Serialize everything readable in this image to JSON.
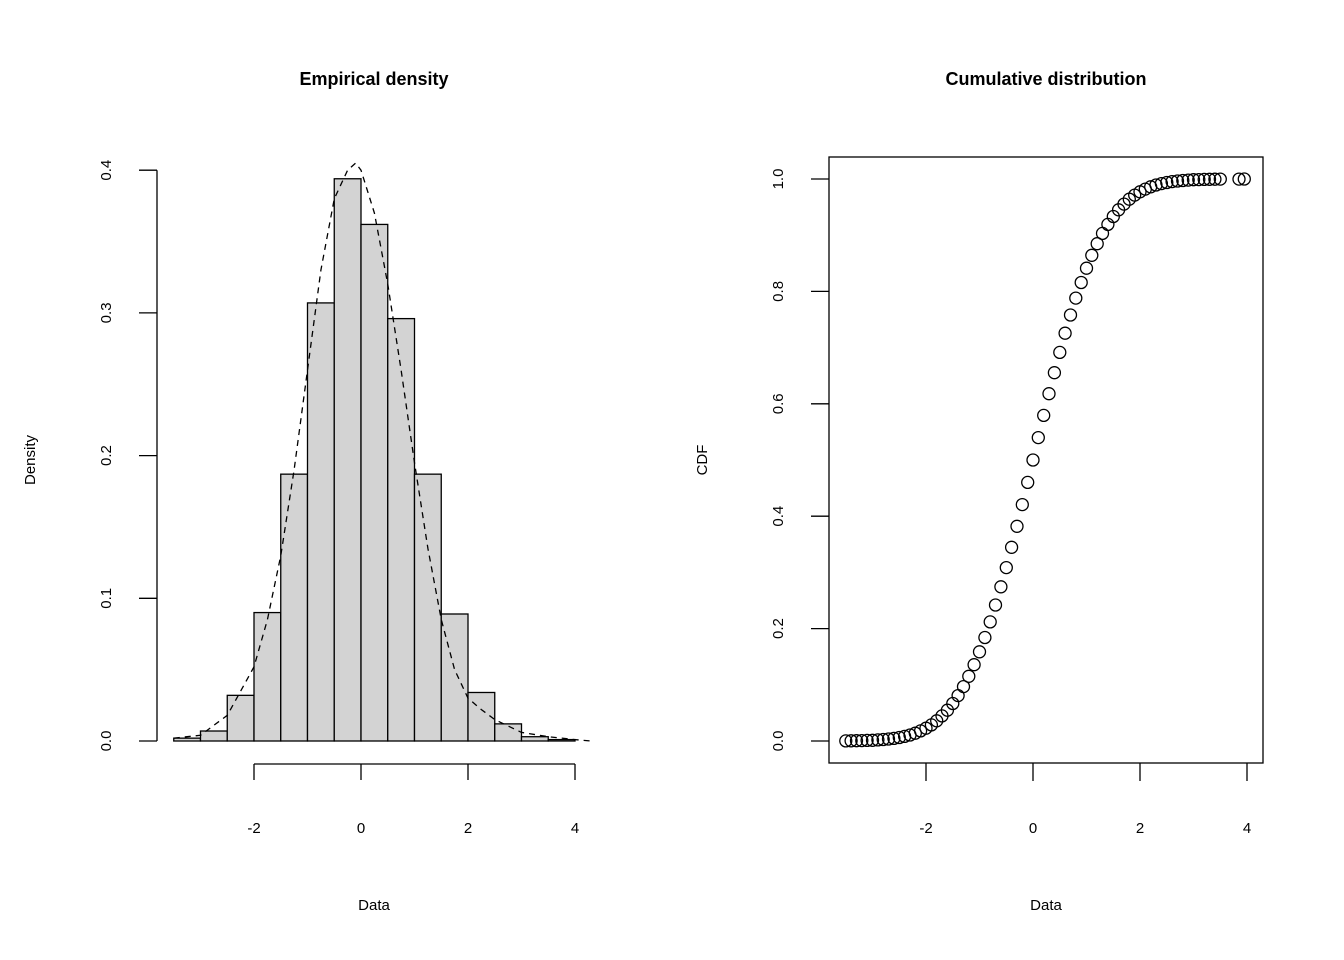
{
  "chart_data": [
    {
      "type": "bar",
      "title": "Empirical density",
      "xlabel": "Data",
      "ylabel": "Density",
      "xlim": [
        -3.5,
        4.3
      ],
      "ylim": [
        0,
        0.4
      ],
      "grid": false,
      "x_ticks": [
        -2,
        0,
        2,
        4
      ],
      "x_tick_labels": [
        "-2",
        "0",
        "2",
        "4"
      ],
      "y_ticks": [
        0,
        0.1,
        0.2,
        0.3,
        0.4
      ],
      "y_tick_labels": [
        "0.0",
        "0.1",
        "0.2",
        "0.3",
        "0.4"
      ],
      "bar_fill": "#d3d3d3",
      "bins": [
        {
          "x0": -3.5,
          "x1": -3.0,
          "density": 0.002
        },
        {
          "x0": -3.0,
          "x1": -2.5,
          "density": 0.007
        },
        {
          "x0": -2.5,
          "x1": -2.0,
          "density": 0.032
        },
        {
          "x0": -2.0,
          "x1": -1.5,
          "density": 0.09
        },
        {
          "x0": -1.5,
          "x1": -1.0,
          "density": 0.187
        },
        {
          "x0": -1.0,
          "x1": -0.5,
          "density": 0.307
        },
        {
          "x0": -0.5,
          "x1": 0.0,
          "density": 0.394
        },
        {
          "x0": 0.0,
          "x1": 0.5,
          "density": 0.362
        },
        {
          "x0": 0.5,
          "x1": 1.0,
          "density": 0.296
        },
        {
          "x0": 1.0,
          "x1": 1.5,
          "density": 0.187
        },
        {
          "x0": 1.5,
          "x1": 2.0,
          "density": 0.089
        },
        {
          "x0": 2.0,
          "x1": 2.5,
          "density": 0.034
        },
        {
          "x0": 2.5,
          "x1": 3.0,
          "density": 0.012
        },
        {
          "x0": 3.0,
          "x1": 3.5,
          "density": 0.003
        },
        {
          "x0": 3.5,
          "x1": 4.0,
          "density": 0.001
        }
      ],
      "density_curve": {
        "style": "dashed",
        "x": [
          -3.5,
          -3.0,
          -2.5,
          -2.0,
          -1.75,
          -1.5,
          -1.25,
          -1.0,
          -0.75,
          -0.5,
          -0.25,
          -0.1,
          0.0,
          0.25,
          0.5,
          0.75,
          1.0,
          1.25,
          1.5,
          1.75,
          2.0,
          2.25,
          2.5,
          3.0,
          3.5,
          4.0,
          4.3
        ],
        "y": [
          0.002,
          0.004,
          0.018,
          0.052,
          0.085,
          0.13,
          0.19,
          0.26,
          0.33,
          0.38,
          0.4,
          0.405,
          0.4,
          0.37,
          0.32,
          0.26,
          0.195,
          0.135,
          0.085,
          0.05,
          0.03,
          0.022,
          0.015,
          0.006,
          0.003,
          0.001,
          0.0
        ]
      }
    },
    {
      "type": "scatter",
      "title": "Cumulative distribution",
      "xlabel": "Data",
      "ylabel": "CDF",
      "xlim": [
        -3.6,
        4.0
      ],
      "ylim": [
        0,
        1.0
      ],
      "grid": false,
      "marker": "open-circle",
      "x_ticks": [
        -2,
        0,
        2,
        4
      ],
      "x_tick_labels": [
        "-2",
        "0",
        "2",
        "4"
      ],
      "y_ticks": [
        0,
        0.2,
        0.4,
        0.6,
        0.8,
        1.0
      ],
      "y_tick_labels": [
        "0.0",
        "0.2",
        "0.4",
        "0.6",
        "0.8",
        "1.0"
      ],
      "x": [
        -3.5,
        -3.4,
        -3.3,
        -3.2,
        -3.1,
        -3.0,
        -2.9,
        -2.8,
        -2.7,
        -2.6,
        -2.5,
        -2.4,
        -2.3,
        -2.2,
        -2.1,
        -2.0,
        -1.9,
        -1.8,
        -1.7,
        -1.6,
        -1.5,
        -1.4,
        -1.3,
        -1.2,
        -1.1,
        -1.0,
        -0.9,
        -0.8,
        -0.7,
        -0.6,
        -0.5,
        -0.4,
        -0.3,
        -0.2,
        -0.1,
        0.0,
        0.1,
        0.2,
        0.3,
        0.4,
        0.5,
        0.6,
        0.7,
        0.8,
        0.9,
        1.0,
        1.1,
        1.2,
        1.3,
        1.4,
        1.5,
        1.6,
        1.7,
        1.8,
        1.9,
        2.0,
        2.1,
        2.2,
        2.3,
        2.4,
        2.5,
        2.6,
        2.7,
        2.8,
        2.9,
        3.0,
        3.1,
        3.2,
        3.3,
        3.4,
        3.5,
        3.85,
        3.95
      ],
      "y": [
        0.0002,
        0.0003,
        0.0005,
        0.0007,
        0.001,
        0.0013,
        0.0019,
        0.0026,
        0.0035,
        0.0047,
        0.0062,
        0.0082,
        0.0107,
        0.0139,
        0.0179,
        0.0228,
        0.0287,
        0.0359,
        0.0446,
        0.0548,
        0.0668,
        0.0808,
        0.0968,
        0.1151,
        0.1357,
        0.1587,
        0.1841,
        0.2119,
        0.242,
        0.2743,
        0.3085,
        0.3446,
        0.3821,
        0.4207,
        0.4602,
        0.5,
        0.5398,
        0.5793,
        0.6179,
        0.6554,
        0.6915,
        0.7257,
        0.758,
        0.7881,
        0.8159,
        0.8413,
        0.8643,
        0.8849,
        0.9032,
        0.9192,
        0.9332,
        0.9452,
        0.9554,
        0.9641,
        0.9713,
        0.9772,
        0.9821,
        0.9861,
        0.9893,
        0.9918,
        0.9938,
        0.9953,
        0.9965,
        0.9974,
        0.9981,
        0.9987,
        0.999,
        0.9993,
        0.9995,
        0.9997,
        0.9998,
        0.9999,
        1.0
      ]
    }
  ]
}
